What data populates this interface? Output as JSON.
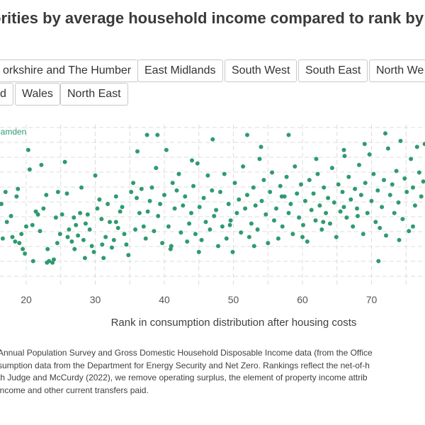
{
  "title": "orities by average household income compared to rank by av",
  "region_buttons": [
    "orkshire and The Humber",
    "East Midlands",
    "South West",
    "South East",
    "North We",
    "d",
    "Wales",
    "North East"
  ],
  "source_lines": [
    "Annual Population Survey and Gross Domestic Household Disposable Income data (from the Office",
    "sumption data from the Department for Energy Security and Net Zero. Rankings reflect the net-of-h",
    "th Judge and McCurdy (2022), we remove operating surplus, the element of property income attrib",
    "income and other current transfers paid."
  ],
  "colors": {
    "point": "#2e9b6f",
    "grid": "#dcdcdc",
    "highlight_label": "#2e9b6f"
  },
  "chart_data": {
    "type": "scatter",
    "xlabel": "Rank in consumption distribution after housing costs",
    "x_ticks": [
      20,
      30,
      40,
      50,
      60,
      70
    ],
    "xlim": [
      16,
      78
    ],
    "ylim": [
      0,
      100
    ],
    "grid": true,
    "annotations": [
      {
        "label": "Camden",
        "x": 16,
        "y": 99
      }
    ],
    "points": [
      [
        16.0,
        90
      ],
      [
        16.4,
        50
      ],
      [
        16.6,
        27
      ],
      [
        17.0,
        58
      ],
      [
        17.2,
        38
      ],
      [
        17.8,
        42
      ],
      [
        18.0,
        28
      ],
      [
        18.4,
        25
      ],
      [
        18.6,
        55
      ],
      [
        18.8,
        60
      ],
      [
        19.0,
        24
      ],
      [
        19.3,
        30
      ],
      [
        19.5,
        20
      ],
      [
        19.8,
        17
      ],
      [
        20.0,
        35
      ],
      [
        20.3,
        86
      ],
      [
        20.5,
        73
      ],
      [
        20.9,
        36
      ],
      [
        21.4,
        45
      ],
      [
        21.7,
        43
      ],
      [
        22.0,
        32
      ],
      [
        22.2,
        76
      ],
      [
        22.5,
        47
      ],
      [
        22.9,
        56
      ],
      [
        23.1,
        20
      ],
      [
        23.3,
        12
      ],
      [
        23.8,
        11
      ],
      [
        24.0,
        13
      ],
      [
        24.3,
        41
      ],
      [
        24.6,
        58
      ],
      [
        24.9,
        30
      ],
      [
        25.2,
        43
      ],
      [
        25.6,
        78
      ],
      [
        25.9,
        57
      ],
      [
        26.2,
        33
      ],
      [
        26.6,
        25
      ],
      [
        26.9,
        41
      ],
      [
        27.2,
        36
      ],
      [
        27.5,
        29
      ],
      [
        27.8,
        44
      ],
      [
        28.0,
        61
      ],
      [
        28.3,
        26
      ],
      [
        28.6,
        37
      ],
      [
        28.9,
        43
      ],
      [
        29.2,
        33
      ],
      [
        29.5,
        22
      ],
      [
        29.8,
        18
      ],
      [
        30.0,
        69
      ],
      [
        30.3,
        47
      ],
      [
        30.6,
        53
      ],
      [
        30.9,
        40
      ],
      [
        31.2,
        14
      ],
      [
        31.5,
        28
      ],
      [
        31.8,
        50
      ],
      [
        32.1,
        38
      ],
      [
        32.4,
        21
      ],
      [
        32.7,
        26
      ],
      [
        33.0,
        55
      ],
      [
        33.3,
        34
      ],
      [
        33.6,
        45
      ],
      [
        33.9,
        48
      ],
      [
        34.2,
        30
      ],
      [
        34.5,
        23
      ],
      [
        34.8,
        16
      ],
      [
        35.2,
        58
      ],
      [
        35.5,
        64
      ],
      [
        35.8,
        33
      ],
      [
        36.1,
        85
      ],
      [
        36.4,
        44
      ],
      [
        36.7,
        60
      ],
      [
        37.0,
        35
      ],
      [
        37.3,
        27
      ],
      [
        37.6,
        45
      ],
      [
        37.9,
        52
      ],
      [
        38.2,
        61
      ],
      [
        38.5,
        32
      ],
      [
        38.8,
        74
      ],
      [
        39.1,
        42
      ],
      [
        39.4,
        50
      ],
      [
        39.7,
        24
      ],
      [
        40.0,
        56
      ],
      [
        40.3,
        86
      ],
      [
        40.6,
        35
      ],
      [
        40.9,
        20
      ],
      [
        41.2,
        64
      ],
      [
        41.5,
        47
      ],
      [
        41.8,
        59
      ],
      [
        42.1,
        70
      ],
      [
        42.4,
        31
      ],
      [
        42.7,
        49
      ],
      [
        43.0,
        55
      ],
      [
        43.3,
        25
      ],
      [
        43.6,
        37
      ],
      [
        43.9,
        44
      ],
      [
        44.2,
        62
      ],
      [
        44.5,
        30
      ],
      [
        44.8,
        77
      ],
      [
        45.1,
        48
      ],
      [
        45.4,
        26
      ],
      [
        45.7,
        54
      ],
      [
        46.0,
        38
      ],
      [
        46.3,
        69
      ],
      [
        46.6,
        33
      ],
      [
        46.9,
        59
      ],
      [
        47.2,
        42
      ],
      [
        47.5,
        46
      ],
      [
        47.8,
        22
      ],
      [
        48.1,
        58
      ],
      [
        48.4,
        35
      ],
      [
        48.7,
        70
      ],
      [
        49.0,
        27
      ],
      [
        49.3,
        50
      ],
      [
        49.6,
        39
      ],
      [
        49.9,
        18
      ],
      [
        50.2,
        64
      ],
      [
        50.5,
        44
      ],
      [
        50.8,
        53
      ],
      [
        51.1,
        31
      ],
      [
        51.4,
        75
      ],
      [
        51.7,
        47
      ],
      [
        52.0,
        56
      ],
      [
        52.3,
        28
      ],
      [
        52.6,
        37
      ],
      [
        52.9,
        61
      ],
      [
        53.2,
        49
      ],
      [
        53.5,
        33
      ],
      [
        53.8,
        80
      ],
      [
        54.1,
        52
      ],
      [
        54.4,
        66
      ],
      [
        54.7,
        43
      ],
      [
        55.0,
        24
      ],
      [
        55.3,
        58
      ],
      [
        55.6,
        71
      ],
      [
        55.9,
        39
      ],
      [
        56.2,
        47
      ],
      [
        56.5,
        27
      ],
      [
        56.8,
        62
      ],
      [
        57.1,
        35
      ],
      [
        57.4,
        55
      ],
      [
        57.7,
        68
      ],
      [
        58.0,
        44
      ],
      [
        58.3,
        50
      ],
      [
        58.6,
        30
      ],
      [
        58.9,
        75
      ],
      [
        59.2,
        57
      ],
      [
        59.5,
        41
      ],
      [
        59.8,
        63
      ],
      [
        60.1,
        36
      ],
      [
        60.4,
        52
      ],
      [
        60.7,
        25
      ],
      [
        61.0,
        66
      ],
      [
        61.3,
        46
      ],
      [
        61.6,
        57
      ],
      [
        61.9,
        39
      ],
      [
        62.2,
        70
      ],
      [
        62.5,
        49
      ],
      [
        62.8,
        33
      ],
      [
        63.1,
        61
      ],
      [
        63.4,
        44
      ],
      [
        63.7,
        54
      ],
      [
        64.0,
        37
      ],
      [
        64.3,
        74
      ],
      [
        64.6,
        51
      ],
      [
        64.9,
        28
      ],
      [
        65.2,
        63
      ],
      [
        65.5,
        45
      ],
      [
        65.8,
        58
      ],
      [
        66.1,
        82
      ],
      [
        66.4,
        41
      ],
      [
        66.7,
        68
      ],
      [
        67.0,
        53
      ],
      [
        67.3,
        35
      ],
      [
        67.6,
        60
      ],
      [
        67.9,
        47
      ],
      [
        68.2,
        76
      ],
      [
        68.5,
        56
      ],
      [
        68.8,
        30
      ],
      [
        69.1,
        64
      ],
      [
        69.4,
        44
      ],
      [
        69.7,
        83
      ],
      [
        70.0,
        52
      ],
      [
        70.3,
        70
      ],
      [
        70.6,
        38
      ],
      [
        70.9,
        59
      ],
      [
        71.2,
        34
      ],
      [
        71.5,
        48
      ],
      [
        71.8,
        66
      ],
      [
        72.1,
        29
      ],
      [
        72.4,
        87
      ],
      [
        72.7,
        56
      ],
      [
        73.0,
        63
      ],
      [
        73.3,
        44
      ],
      [
        73.6,
        72
      ],
      [
        73.9,
        51
      ],
      [
        74.2,
        92
      ],
      [
        74.5,
        40
      ],
      [
        74.8,
        67
      ],
      [
        75.1,
        58
      ],
      [
        75.4,
        32
      ],
      [
        75.7,
        80
      ],
      [
        76.0,
        61
      ],
      [
        76.3,
        49
      ],
      [
        76.6,
        88
      ],
      [
        76.9,
        71
      ],
      [
        77.2,
        55
      ],
      [
        77.5,
        65
      ],
      [
        77.7,
        90
      ],
      [
        77.9,
        64
      ],
      [
        62.0,
        80
      ],
      [
        57.0,
        55
      ],
      [
        44.0,
        79
      ],
      [
        41.0,
        22
      ],
      [
        37.5,
        96
      ],
      [
        39.0,
        96
      ],
      [
        52.0,
        96
      ],
      [
        58.0,
        96
      ],
      [
        54.0,
        88
      ],
      [
        69.0,
        90
      ],
      [
        72.0,
        97
      ],
      [
        71.0,
        12
      ],
      [
        47.0,
        93
      ],
      [
        66.0,
        86
      ],
      [
        66.0,
        48
      ],
      [
        76.0,
        35
      ],
      [
        26.0,
        28
      ],
      [
        31.0,
        23
      ],
      [
        23.0,
        11
      ],
      [
        28.5,
        14
      ],
      [
        36.0,
        54
      ],
      [
        33.0,
        38
      ],
      [
        24.5,
        24
      ],
      [
        21.0,
        12
      ],
      [
        27.0,
        20
      ],
      [
        45.0,
        18
      ],
      [
        49.5,
        36
      ],
      [
        53.0,
        22
      ],
      [
        63.0,
        38
      ],
      [
        60.0,
        28
      ],
      [
        68.0,
        42
      ],
      [
        74.0,
        26
      ]
    ]
  }
}
